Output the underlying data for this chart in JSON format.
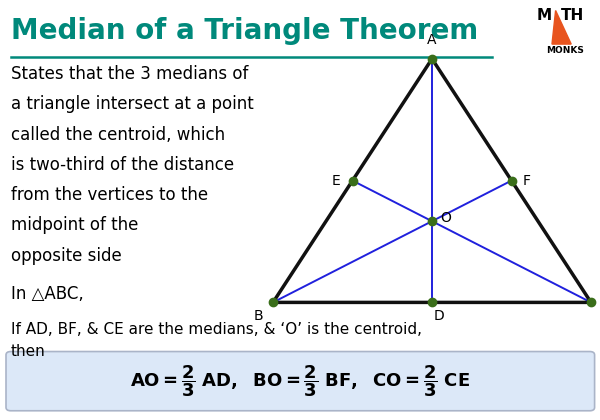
{
  "title": "Median of a Triangle Theorem",
  "title_color": "#00897B",
  "bg_color": "#ffffff",
  "description_lines": [
    "States that the 3 medians of",
    "a triangle intersect at a point",
    "called the centroid, which",
    "is two-third of the distance",
    "from the vertices to the",
    "midpoint of the",
    "opposite side"
  ],
  "in_abc": "In △ABC,",
  "medians_text": "If AD, BF, & CE are the medians, & ‘O’ is the centroid,",
  "then_text": "then",
  "formula_box_color": "#dce8f8",
  "formula_box_border": "#aab4c8",
  "triangle_color": "#111111",
  "median_color": "#2020dd",
  "point_color": "#3a6e1a",
  "point_size": 6,
  "label_fontsize": 10,
  "text_fontsize": 12,
  "title_fontsize": 20,
  "math_monks_orange": "#e8541e",
  "underline_color": "#00897B",
  "tri_A": [
    0.72,
    0.14
  ],
  "tri_B": [
    0.455,
    0.72
  ],
  "tri_C": [
    0.985,
    0.72
  ]
}
